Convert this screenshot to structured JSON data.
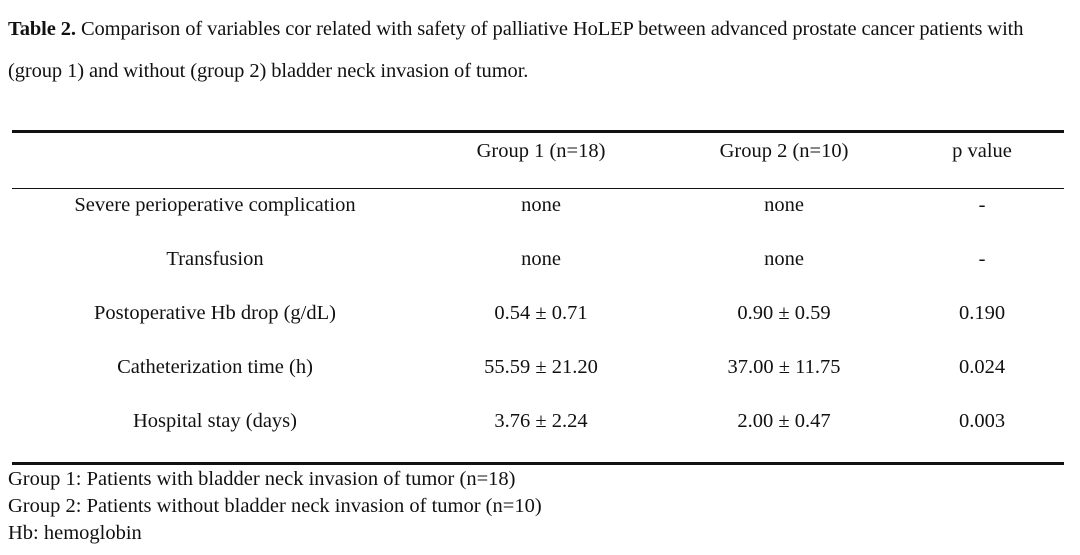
{
  "caption": {
    "label": "Table 2.",
    "text": " Comparison of variables cor related with safety of palliative  HoLEP between advanced prostate cancer patients with (group 1) and without (group 2) bladder neck invasion of tumor."
  },
  "table": {
    "headers": [
      "",
      "Group 1 (n=18)",
      "Group 2 (n=10)",
      "p value"
    ],
    "rows": [
      [
        "Severe perioperative complication",
        "none",
        "none",
        "-"
      ],
      [
        "Transfusion",
        "none",
        "none",
        "-"
      ],
      [
        "Postoperative Hb drop (g/dL)",
        "0.54 ± 0.71",
        "0.90 ± 0.59",
        "0.190"
      ],
      [
        "Catheterization time (h)",
        "55.59 ± 21.20",
        "37.00 ± 11.75",
        "0.024"
      ],
      [
        "Hospital stay (days)",
        "3.76 ± 2.24",
        "2.00 ± 0.47",
        "0.003"
      ]
    ]
  },
  "footnotes": [
    "Group 1: Patients with bladder neck invasion of tumor (n=18)",
    "Group 2: Patients without bladder neck invasion of tumor (n=10)",
    "Hb: hemoglobin"
  ]
}
